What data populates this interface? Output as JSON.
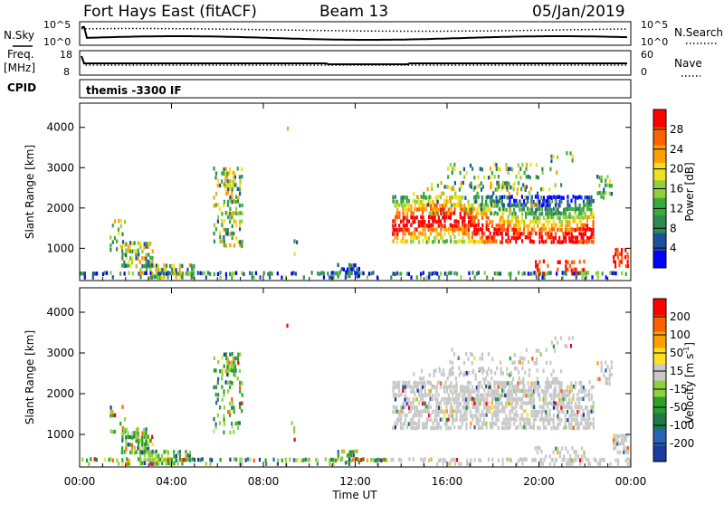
{
  "header": {
    "station": "Fort Hays East (fitACF)",
    "beam": "Beam 13",
    "date": "05/Jan/2019"
  },
  "noise_panel": {
    "left_label": "N.Sky",
    "right_label": "N.Search",
    "left_ticks": [
      "10^5",
      "10^0"
    ],
    "right_ticks": [
      "10^5",
      "10^0"
    ]
  },
  "freq_panel": {
    "left_label_1": "Freq.",
    "left_label_2": "[MHz]",
    "right_label": "Nave",
    "left_ticks": [
      "18",
      "8"
    ],
    "right_ticks": [
      "60",
      "0"
    ]
  },
  "cpid": {
    "label": "CPID",
    "value": "themis -3300 IF"
  },
  "colors": {
    "power": [
      "#0000ff",
      "#1e50a0",
      "#2e8a50",
      "#3aaa3a",
      "#8fd03c",
      "#f0e020",
      "#ffa000",
      "#ff6000",
      "#ff0000"
    ],
    "velocity": [
      "#1a3aa0",
      "#2a64b4",
      "#1e7848",
      "#2aa02a",
      "#8ed040",
      "#c8c8c8",
      "#ffe020",
      "#ffa000",
      "#ff6000",
      "#ff0000"
    ]
  },
  "chart_data": [
    {
      "type": "heatmap",
      "name_hint": "power",
      "ylabel": "Slant Range [km]",
      "yticks": [
        "1000",
        "2000",
        "3000",
        "4000"
      ],
      "ylim": [
        200,
        4600
      ],
      "xlim_hours": [
        0,
        24
      ],
      "colorbar": {
        "label": "Power [dB]",
        "ticks": [
          "4",
          "8",
          "12",
          "16",
          "20",
          "24",
          "28"
        ],
        "range": [
          0,
          32
        ]
      }
    },
    {
      "type": "heatmap",
      "name_hint": "velocity",
      "ylabel": "Slant Range [km]",
      "yticks": [
        "1000",
        "2000",
        "3000",
        "4000"
      ],
      "ylim": [
        200,
        4600
      ],
      "xlim_hours": [
        0,
        24
      ],
      "xticks": [
        "00:00",
        "04:00",
        "08:00",
        "12:00",
        "16:00",
        "20:00",
        "00:00"
      ],
      "xlabel": "Time UT",
      "colorbar": {
        "label": "Velocity [m s",
        "label_sup": "-1",
        "label_end": "]",
        "ticks": [
          "200",
          "100",
          "50",
          "15",
          "-15",
          "-50",
          "-100",
          "-200"
        ]
      }
    }
  ]
}
